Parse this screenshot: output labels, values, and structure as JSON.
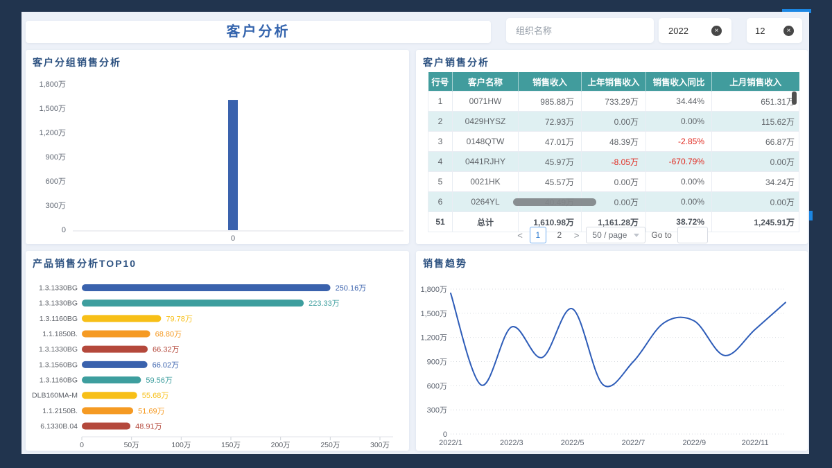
{
  "header": {
    "title": "客户分析"
  },
  "filters": {
    "org_placeholder": "组织名称",
    "year_value": "2022",
    "month_value": "12"
  },
  "panels": {
    "group_sales": {
      "title": "客户分组销售分析"
    },
    "customer_sales": {
      "title": "客户销售分析"
    },
    "top10": {
      "title": "产品销售分析TOP10"
    },
    "trend": {
      "title": "销售趋势"
    }
  },
  "table": {
    "headers": [
      "行号",
      "客户名称",
      "销售收入",
      "上年销售收入",
      "销售收入同比",
      "上月销售收入"
    ],
    "rows": [
      [
        "1",
        "0071HW",
        "985.88万",
        "733.29万",
        "34.44%",
        "651.31万"
      ],
      [
        "2",
        "0429HYSZ",
        "72.93万",
        "0.00万",
        "0.00%",
        "115.62万"
      ],
      [
        "3",
        "0148QTW",
        "47.01万",
        "48.39万",
        "-2.85%",
        "66.87万"
      ],
      [
        "4",
        "0441RJHY",
        "45.97万",
        "-8.05万",
        "-670.79%",
        "0.00万"
      ],
      [
        "5",
        "0021HK",
        "45.57万",
        "0.00万",
        "0.00%",
        "34.24万"
      ],
      [
        "6",
        "0264YL",
        "40.49万",
        "0.00万",
        "0.00%",
        "0.00万"
      ]
    ],
    "total_row": [
      "51",
      "总计",
      "1,610.98万",
      "1,161.28万",
      "38.72%",
      "1,245.91万"
    ]
  },
  "pagination": {
    "prev": "<",
    "next": ">",
    "pages": [
      "1",
      "2"
    ],
    "active_page": "1",
    "page_size": "50 / page",
    "goto_label": "Go to"
  },
  "colors": {
    "frame_navy": "#21344e",
    "accent_blue": "#1b86e3",
    "table_header_teal": "#419c9d",
    "negative_red": "#e02a20",
    "palette": [
      "#3a62ad",
      "#3d9e9e",
      "#f7bf17",
      "#f59a23",
      "#b4483b"
    ]
  },
  "chart_data": [
    {
      "id": "group_sales",
      "type": "bar",
      "title": "客户分组销售分析",
      "categories": [
        "0"
      ],
      "values": [
        1610.98
      ],
      "unit": "万",
      "ylim": [
        0,
        1800
      ],
      "yticks": [
        "1,800万",
        "1,500万",
        "1,200万",
        "900万",
        "600万",
        "300万",
        "0"
      ],
      "bar_color": "#3a62ad",
      "grid": false
    },
    {
      "id": "top10",
      "type": "bar",
      "orientation": "horizontal",
      "title": "产品销售分析TOP10",
      "categories": [
        "1.3.1330BG",
        "1.3.1330BG",
        "1.3.1160BG",
        "1.1.1850B.",
        "1.3.1330BG",
        "1.3.1560BG",
        "1.3.1160BG",
        "DLB160MA-M",
        "1.1.2150B.",
        "6.1330B.04"
      ],
      "values": [
        250.16,
        223.33,
        79.78,
        68.8,
        66.32,
        66.02,
        59.56,
        55.68,
        51.69,
        48.91
      ],
      "value_labels": [
        "250.16万",
        "223.33万",
        "79.78万",
        "68.80万",
        "66.32万",
        "66.02万",
        "59.56万",
        "55.68万",
        "51.69万",
        "48.91万"
      ],
      "xlim": [
        0,
        300
      ],
      "xticks": [
        "0",
        "50万",
        "100万",
        "150万",
        "200万",
        "250万",
        "300万"
      ],
      "colors": [
        "#3a62ad",
        "#3d9e9e",
        "#f7bf17",
        "#f59a23",
        "#b4483b",
        "#3a62ad",
        "#3d9e9e",
        "#f7bf17",
        "#f59a23",
        "#b4483b"
      ]
    },
    {
      "id": "trend",
      "type": "line",
      "title": "销售趋势",
      "x": [
        "2022/1",
        "2022/2",
        "2022/3",
        "2022/4",
        "2022/5",
        "2022/6",
        "2022/7",
        "2022/8",
        "2022/9",
        "2022/10",
        "2022/11",
        "2022/12"
      ],
      "values": [
        1748,
        610,
        1330,
        950,
        1555,
        615,
        900,
        1380,
        1405,
        975,
        1300,
        1635
      ],
      "visible_xticks": [
        "2022/1",
        "2022/3",
        "2022/5",
        "2022/7",
        "2022/9",
        "2022/11"
      ],
      "ylim": [
        0,
        1800
      ],
      "yticks": [
        "1,800万",
        "1,500万",
        "1,200万",
        "900万",
        "600万",
        "300万",
        "0"
      ],
      "line_color": "#2d5cb8",
      "smooth": true,
      "grid": "dotted-horizontal",
      "legend": "none"
    }
  ]
}
